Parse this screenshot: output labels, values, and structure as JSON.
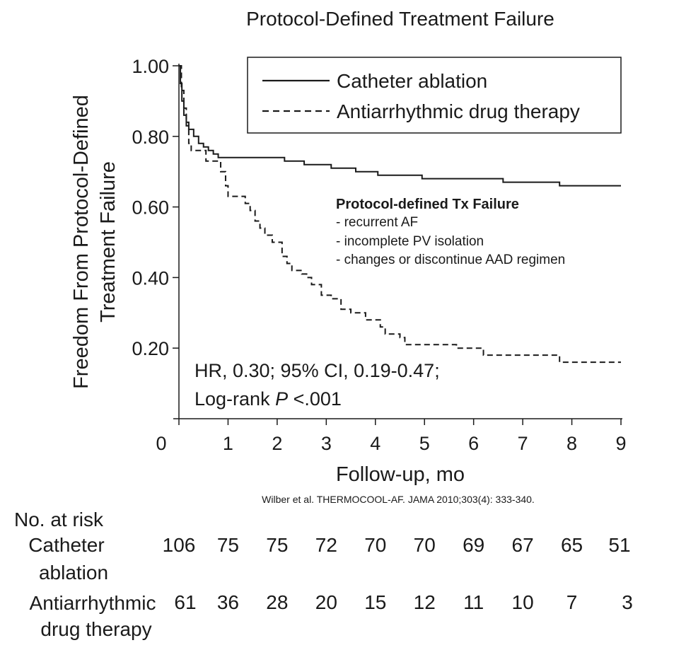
{
  "chart_data": {
    "type": "line",
    "title": "Protocol-Defined Treatment Failure",
    "xlabel": "Follow-up, mo",
    "ylabel_lines": [
      "Freedom From Protocol-Defined",
      "Treatment Failure"
    ],
    "xlim": [
      0,
      9
    ],
    "ylim": [
      0,
      1.0
    ],
    "x_ticks": [
      "0",
      "1",
      "2",
      "3",
      "4",
      "5",
      "6",
      "7",
      "8",
      "9"
    ],
    "y_ticks": [
      "0.20",
      "0.40",
      "0.60",
      "0.80",
      "1.00"
    ],
    "series": [
      {
        "name": "Catheter ablation",
        "line_style": "solid",
        "color": "#1a1a1a",
        "points": [
          [
            0,
            1.0
          ],
          [
            0.03,
            0.95
          ],
          [
            0.06,
            0.9
          ],
          [
            0.1,
            0.86
          ],
          [
            0.15,
            0.84
          ],
          [
            0.2,
            0.82
          ],
          [
            0.3,
            0.8
          ],
          [
            0.4,
            0.78
          ],
          [
            0.5,
            0.77
          ],
          [
            0.6,
            0.76
          ],
          [
            0.7,
            0.75
          ],
          [
            0.8,
            0.74
          ],
          [
            1.0,
            0.74
          ],
          [
            1.5,
            0.74
          ],
          [
            2.15,
            0.73
          ],
          [
            2.5,
            0.73
          ],
          [
            2.55,
            0.72
          ],
          [
            3.05,
            0.72
          ],
          [
            3.1,
            0.71
          ],
          [
            3.6,
            0.7
          ],
          [
            4.05,
            0.69
          ],
          [
            4.9,
            0.69
          ],
          [
            4.95,
            0.68
          ],
          [
            6.55,
            0.68
          ],
          [
            6.6,
            0.67
          ],
          [
            7.7,
            0.67
          ],
          [
            7.75,
            0.66
          ],
          [
            9.0,
            0.66
          ]
        ]
      },
      {
        "name": "Antiarrhythmic drug therapy",
        "line_style": "dashed",
        "color": "#1a1a1a",
        "points": [
          [
            0,
            1.0
          ],
          [
            0.05,
            0.93
          ],
          [
            0.1,
            0.88
          ],
          [
            0.15,
            0.83
          ],
          [
            0.2,
            0.78
          ],
          [
            0.25,
            0.76
          ],
          [
            0.5,
            0.76
          ],
          [
            0.55,
            0.73
          ],
          [
            0.8,
            0.73
          ],
          [
            0.85,
            0.7
          ],
          [
            0.95,
            0.66
          ],
          [
            1.0,
            0.63
          ],
          [
            1.3,
            0.63
          ],
          [
            1.35,
            0.61
          ],
          [
            1.45,
            0.59
          ],
          [
            1.55,
            0.56
          ],
          [
            1.65,
            0.54
          ],
          [
            1.75,
            0.52
          ],
          [
            1.9,
            0.5
          ],
          [
            2.1,
            0.46
          ],
          [
            2.2,
            0.44
          ],
          [
            2.3,
            0.42
          ],
          [
            2.5,
            0.41
          ],
          [
            2.6,
            0.4
          ],
          [
            2.7,
            0.38
          ],
          [
            2.9,
            0.35
          ],
          [
            3.0,
            0.35
          ],
          [
            3.1,
            0.34
          ],
          [
            3.3,
            0.31
          ],
          [
            3.5,
            0.3
          ],
          [
            3.8,
            0.28
          ],
          [
            4.1,
            0.26
          ],
          [
            4.2,
            0.24
          ],
          [
            4.5,
            0.23
          ],
          [
            4.6,
            0.21
          ],
          [
            5.6,
            0.21
          ],
          [
            5.65,
            0.2
          ],
          [
            6.1,
            0.2
          ],
          [
            6.2,
            0.18
          ],
          [
            7.7,
            0.18
          ],
          [
            7.75,
            0.16
          ],
          [
            9.0,
            0.16
          ]
        ]
      }
    ],
    "legend_position": "top-right",
    "grid": false,
    "annotation": {
      "lines": [
        "HR, 0.30; 95% CI, 0.19-0.47;",
        "Log-rank P <.001"
      ]
    },
    "note": {
      "heading": "Protocol-defined Tx Failure",
      "items": [
        "- recurrent AF",
        "- incomplete PV isolation",
        "- changes or discontinue AAD regimen"
      ]
    },
    "citation": "Wilber et al. THERMOCOOL-AF. JAMA 2010;303(4): 333-340.",
    "at_risk": {
      "header": "No. at risk",
      "rows": [
        {
          "label_lines": [
            "Catheter",
            "ablation"
          ],
          "values": [
            "106",
            "75",
            "75",
            "72",
            "70",
            "70",
            "69",
            "67",
            "65",
            "51"
          ]
        },
        {
          "label_lines": [
            "Antiarrhythmic",
            "drug therapy"
          ],
          "values": [
            "61",
            "36",
            "28",
            "20",
            "15",
            "12",
            "11",
            "10",
            "7",
            "3"
          ]
        }
      ]
    }
  }
}
